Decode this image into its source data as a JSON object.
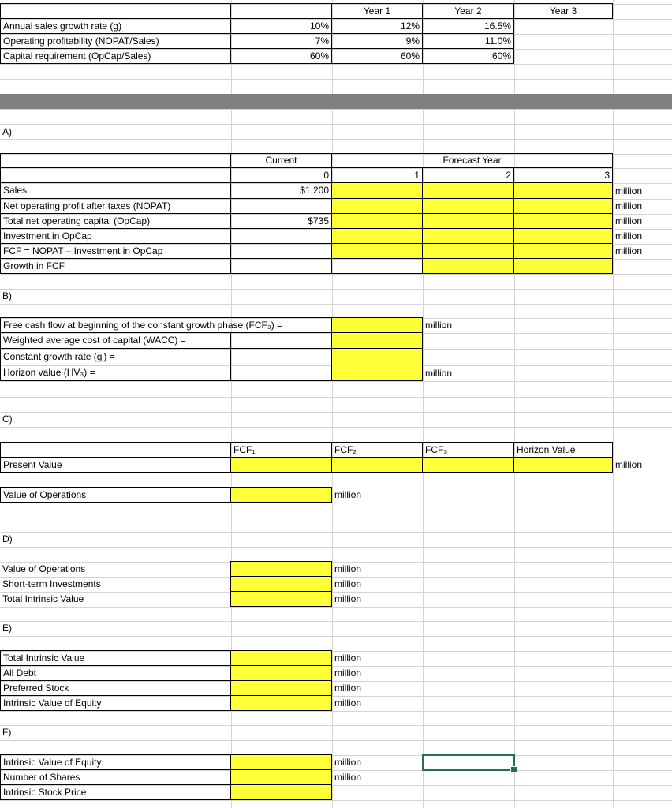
{
  "assumptions": {
    "headers": [
      "Year 1",
      "Year 2",
      "Year 3"
    ],
    "rows": [
      {
        "label": "Annual sales growth rate (g)",
        "values": [
          "10%",
          "12%",
          "16.5%"
        ]
      },
      {
        "label": "Operating profitability (NOPAT/Sales)",
        "values": [
          "7%",
          "9%",
          "11.0%"
        ]
      },
      {
        "label": "Capital requirement (OpCap/Sales)",
        "values": [
          "60%",
          "60%",
          "60%"
        ]
      }
    ]
  },
  "section_a": {
    "title": "A)",
    "current_label": "Current",
    "forecast_label": "Forecast Year",
    "years": [
      "0",
      "1",
      "2",
      "3"
    ],
    "rows": [
      {
        "label": "Sales",
        "current": "$1,200",
        "unit": "million"
      },
      {
        "label": "Net operating profit after taxes (NOPAT)",
        "current": "",
        "unit": "million"
      },
      {
        "label": "Total net operating capital (OpCap)",
        "current": "$735",
        "unit": "million"
      },
      {
        "label": "Investment in OpCap",
        "current": "",
        "unit": "million"
      },
      {
        "label": "FCF = NOPAT –  Investment in OpCap",
        "current": "",
        "unit": "million"
      },
      {
        "label": "Growth in FCF",
        "current": "",
        "unit": ""
      }
    ]
  },
  "section_b": {
    "title": "B)",
    "rows": [
      {
        "label": "Free cash flow at beginning of the constant growth phase (FCF₃) =",
        "unit": "million"
      },
      {
        "label": "Weighted average cost of capital (WACC) =",
        "unit": ""
      },
      {
        "label": "Constant growth rate (gₗ) =",
        "unit": ""
      },
      {
        "label": "Horizon value (HV₃) =",
        "unit": "million"
      }
    ]
  },
  "section_c": {
    "title": "C)",
    "headers": [
      "FCF₁",
      "FCF₂",
      "FCF₃",
      "Horizon Value"
    ],
    "pv_label": "Present Value",
    "pv_unit": "million",
    "vop_label": "Value of Operations",
    "vop_unit": "million"
  },
  "section_d": {
    "title": "D)",
    "rows": [
      {
        "label": "Value of Operations",
        "unit": "million"
      },
      {
        "label": "Short-term Investments",
        "unit": "million"
      },
      {
        "label": "Total Intrinsic Value",
        "unit": "million"
      }
    ]
  },
  "section_e": {
    "title": "E)",
    "rows": [
      {
        "label": "Total Intrinsic Value",
        "unit": "million"
      },
      {
        "label": "All Debt",
        "unit": "million"
      },
      {
        "label": "Preferred Stock",
        "unit": "million"
      },
      {
        "label": "Intrinsic Value of Equity",
        "unit": "million"
      }
    ]
  },
  "section_f": {
    "title": "F)",
    "rows": [
      {
        "label": "Intrinsic Value of Equity",
        "unit": "million"
      },
      {
        "label": "Number of Shares",
        "unit": "million"
      },
      {
        "label": "Intrinsic Stock Price",
        "unit": ""
      }
    ]
  },
  "colors": {
    "input_fill": "#ffff38",
    "band": "#808080",
    "selection": "#217346",
    "gridline": "#d4d4d4"
  }
}
